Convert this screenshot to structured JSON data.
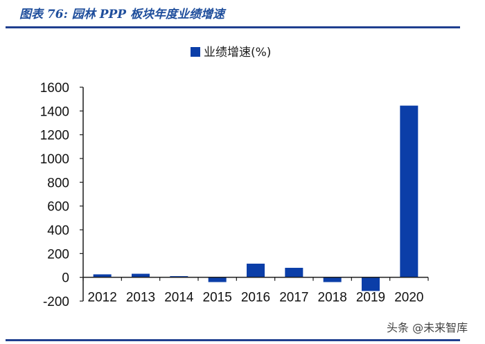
{
  "figure": {
    "title": "图表 76:  园林 PPP 板块年度业绩增速",
    "watermark": "头条 @未来智库"
  },
  "colors": {
    "bar": "#0b3ea8",
    "axis": "#1a1a1a",
    "rule": "#1f3f8f"
  },
  "chart_data": {
    "type": "bar",
    "categories": [
      "2012",
      "2013",
      "2014",
      "2015",
      "2016",
      "2017",
      "2018",
      "2019",
      "2020"
    ],
    "series": [
      {
        "name": "业绩增速(%)",
        "values": [
          25,
          30,
          10,
          -40,
          115,
          80,
          -40,
          -115,
          1445
        ]
      }
    ],
    "ylim": [
      -200,
      1600
    ],
    "yticks": [
      -200,
      0,
      200,
      400,
      600,
      800,
      1000,
      1200,
      1400,
      1600
    ],
    "xlabel": "",
    "ylabel": "",
    "legend_position": "top-center",
    "grid": false
  }
}
